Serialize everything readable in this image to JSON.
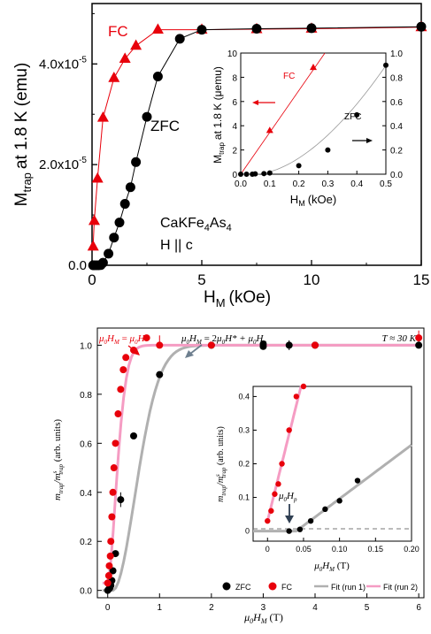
{
  "chart_data": [
    {
      "type": "scatter",
      "panel": "top",
      "xlabel": "H",
      "xlabel_sub": "M",
      "xlabel_unit": "(kOe)",
      "ylabel": "M",
      "ylabel_sub": "trap",
      "ylabel_rest": "at 1.8 K (emu)",
      "xlim": [
        0,
        15
      ],
      "ylim": [
        0,
        5.2e-05
      ],
      "x_ticks": [
        {
          "v": 0,
          "label": "0"
        },
        {
          "v": 5,
          "label": "5"
        },
        {
          "v": 10,
          "label": "10"
        },
        {
          "v": 15,
          "label": "15"
        }
      ],
      "y_ticks": [
        {
          "v": 0,
          "label": "0.0"
        },
        {
          "v": 2e-05,
          "label": "2.0x10",
          "exp": "-5"
        },
        {
          "v": 4e-05,
          "label": "4.0x10",
          "exp": "-5"
        }
      ],
      "annotation": {
        "material_a": "CaKFe",
        "sub1": "4",
        "material_b": "As",
        "sub2": "4",
        "field": "H || c"
      },
      "series": [
        {
          "name": "FC",
          "color": "#e8000b",
          "marker": "triangle",
          "x": [
            0.05,
            0.1,
            0.25,
            0.5,
            1.0,
            1.5,
            2.0,
            3.0,
            5.0,
            7.5,
            10.0,
            15.0
          ],
          "y": [
            3.7e-06,
            8.8e-06,
            1.72e-05,
            2.93e-05,
            3.72e-05,
            4.1e-05,
            4.36e-05,
            4.68e-05,
            4.68e-05,
            4.69e-05,
            4.7e-05,
            4.73e-05
          ]
        },
        {
          "name": "ZFC",
          "color": "#000000",
          "marker": "circle",
          "x": [
            0.05,
            0.1,
            0.2,
            0.3,
            0.4,
            0.5,
            0.75,
            1.0,
            1.25,
            1.5,
            1.75,
            2.0,
            2.5,
            3.0,
            4.0,
            5.0,
            7.5,
            10.0,
            15.0
          ],
          "y": [
            0.0,
            0.0,
            0.0,
            0.0,
            5e-08,
            5e-07,
            2.3e-06,
            5.5e-06,
            8.5e-06,
            1.22e-05,
            1.55e-05,
            2.05e-05,
            2.95e-05,
            3.75e-05,
            4.5e-05,
            4.68e-05,
            4.7e-05,
            4.71e-05,
            4.74e-05
          ]
        }
      ],
      "inset": {
        "xlabel": "H",
        "xlabel_sub": "M",
        "xlabel_unit": "(kOe)",
        "ylabel": "M",
        "ylabel_sub": "trap",
        "ylabel_rest": "at 1.8 K (μemu)",
        "xlim": [
          0,
          0.5
        ],
        "ylim_left": [
          0,
          10
        ],
        "ylim_right": [
          0,
          1.0
        ],
        "x_ticks": [
          "0.0",
          "0.1",
          "0.2",
          "0.3",
          "0.4",
          "0.5"
        ],
        "y_ticks_left": [
          "0",
          "2",
          "4",
          "6",
          "8",
          "10"
        ],
        "y_ticks_right": [
          "0.0",
          "0.2",
          "0.4",
          "0.6",
          "0.8",
          "1.0"
        ],
        "series": [
          {
            "name": "FC",
            "color": "#e8000b",
            "marker": "triangle",
            "axis": "left",
            "x": [
              0.1,
              0.25
            ],
            "y": [
              3.6,
              8.8
            ],
            "line": [
              [
                0.0,
                0.0
              ],
              [
                0.29,
                10.0
              ]
            ]
          },
          {
            "name": "ZFC",
            "color": "#000000",
            "marker": "circle",
            "axis": "right",
            "x": [
              0.0,
              0.02,
              0.04,
              0.05,
              0.08,
              0.1,
              0.2,
              0.3,
              0.4,
              0.5
            ],
            "y": [
              0.0,
              0.0,
              0.0,
              0.003,
              0.005,
              0.01,
              0.07,
              0.2,
              0.49,
              0.9
            ]
          }
        ]
      }
    },
    {
      "type": "scatter",
      "panel": "bottom",
      "xlabel": "μ0HM (T)",
      "ylabel": "mtrap/mstrap (arb. units)",
      "xlim": [
        -0.2,
        6.1
      ],
      "ylim": [
        -0.03,
        1.07
      ],
      "x_ticks": [
        "0",
        "1",
        "2",
        "3",
        "4",
        "5",
        "6"
      ],
      "y_ticks": [
        "0.0",
        "0.2",
        "0.4",
        "0.6",
        "0.8",
        "1.0"
      ],
      "annotations": {
        "fc_eq": "μ0HM = μ0H*",
        "zfc_eq": "μ0HM = 2μ0H* + μ0Hp",
        "temp": "T ≈ 30 K",
        "hp_label": "μ0Hp"
      },
      "legend": [
        "ZFC",
        "FC",
        "Fit (run 1)",
        "Fit (run 2)"
      ],
      "series": [
        {
          "name": "ZFC",
          "color": "#000000",
          "x": [
            0.0,
            0.02,
            0.04,
            0.06,
            0.08,
            0.1,
            0.15,
            0.25,
            0.5,
            1.0,
            2.0,
            3.0,
            3.0,
            4.0,
            6.0
          ],
          "y": [
            0.0,
            0.005,
            0.01,
            0.02,
            0.04,
            0.08,
            0.15,
            0.37,
            0.63,
            0.88,
            1.0,
            1.005,
            0.995,
            1.0,
            1.0
          ]
        },
        {
          "name": "FC",
          "color": "#e8000b",
          "x": [
            0.0,
            0.02,
            0.03,
            0.05,
            0.06,
            0.08,
            0.1,
            0.12,
            0.15,
            0.2,
            0.25,
            0.3,
            0.35,
            0.5,
            0.75,
            1.0,
            2.0,
            4.0,
            6.0
          ],
          "y": [
            0.03,
            0.06,
            0.1,
            0.14,
            0.2,
            0.3,
            0.4,
            0.5,
            0.6,
            0.72,
            0.82,
            0.9,
            0.95,
            0.98,
            1.03,
            1.0,
            1.0,
            1.0,
            1.03
          ]
        },
        {
          "name": "Fit (run 1)",
          "color": "#b0b0b0"
        },
        {
          "name": "Fit (run 2)",
          "color": "#f59cc3"
        }
      ],
      "inset": {
        "xlabel": "μ0HM (T)",
        "ylabel": "mtrap/mstrap (arb. units)",
        "xlim": [
          -0.02,
          0.2
        ],
        "ylim": [
          -0.03,
          0.43
        ],
        "x_ticks": [
          "0",
          "0.05",
          "0.10",
          "0.15",
          "0.20"
        ],
        "y_ticks": [
          "0",
          "0.1",
          "0.2",
          "0.3",
          "0.4"
        ],
        "series": [
          {
            "name": "ZFC",
            "x": [
              0.03,
              0.045,
              0.06,
              0.08,
              0.1,
              0.125
            ],
            "y": [
              0.0,
              0.005,
              0.03,
              0.065,
              0.09,
              0.15
            ]
          },
          {
            "name": "FC",
            "x": [
              0.0,
              0.005,
              0.01,
              0.015,
              0.02,
              0.03,
              0.04,
              0.05
            ],
            "y": [
              0.03,
              0.06,
              0.11,
              0.14,
              0.2,
              0.3,
              0.4,
              0.43
            ]
          }
        ]
      }
    }
  ]
}
